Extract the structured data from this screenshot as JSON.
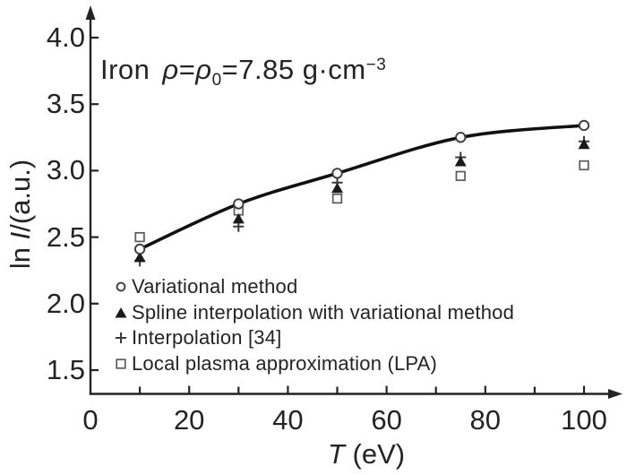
{
  "figure": {
    "background": "#ffffff",
    "ink_color": "#232323"
  },
  "annotation": {
    "material": "Iron",
    "rho1": "ρ",
    "eq1": "=",
    "rho2": "ρ",
    "sub0": "0",
    "value": "=7.85 g·cm",
    "exponent": "−3"
  },
  "axis_titles": {
    "y_ln": "ln ",
    "y_I": "I",
    "y_rest": "/(a.u.)",
    "x_T": "T",
    "x_rest": " (eV)"
  },
  "chart_data": {
    "type": "scatter",
    "title": "Iron ρ=ρ0=7.85 g·cm−3",
    "xlabel": "T (eV)",
    "ylabel": "ln I/(a.u.)",
    "xlim": [
      0,
      107
    ],
    "ylim": [
      1.32,
      4.22
    ],
    "grid": false,
    "legend_position": "lower-left-inside",
    "x": [
      10,
      30,
      50,
      75,
      100
    ],
    "series": [
      {
        "name": "Variational method",
        "marker": "open-circle",
        "color": "#3c3c3c",
        "has_curve": true,
        "values": [
          2.41,
          2.75,
          2.98,
          3.25,
          3.34
        ]
      },
      {
        "name": "Spline interpolation with variational method",
        "marker": "filled-triangle",
        "color": "#1a1a1a",
        "has_curve": false,
        "values": [
          2.35,
          2.64,
          2.87,
          3.07,
          3.2
        ]
      },
      {
        "name": "Interpolation [34]",
        "marker": "plus",
        "color": "#3a3a3a",
        "has_curve": false,
        "values": [
          2.32,
          2.58,
          2.91,
          3.1,
          3.22
        ]
      },
      {
        "name": "Local plasma approximation (LPA)",
        "marker": "open-square",
        "color": "#5a5a5a",
        "has_curve": false,
        "values": [
          2.5,
          2.7,
          2.79,
          2.96,
          3.04
        ]
      }
    ],
    "curve_color": "#111111",
    "x_ticks": {
      "major": [
        {
          "label": "0",
          "value": 0
        },
        {
          "label": "20",
          "value": 20
        },
        {
          "label": "40",
          "value": 40
        },
        {
          "label": "60",
          "value": 60
        },
        {
          "label": "80",
          "value": 80
        },
        {
          "label": "100",
          "value": 100
        }
      ],
      "minor": [
        10,
        30,
        50,
        70,
        90
      ]
    },
    "y_ticks": [
      {
        "label": "4.0",
        "value": 4.0
      },
      {
        "label": "3.5",
        "value": 3.5
      },
      {
        "label": "3.0",
        "value": 3.0
      },
      {
        "label": "2.5",
        "value": 2.5
      },
      {
        "label": "2.0",
        "value": 2.0
      },
      {
        "label": "1.5",
        "value": 1.5
      }
    ]
  }
}
